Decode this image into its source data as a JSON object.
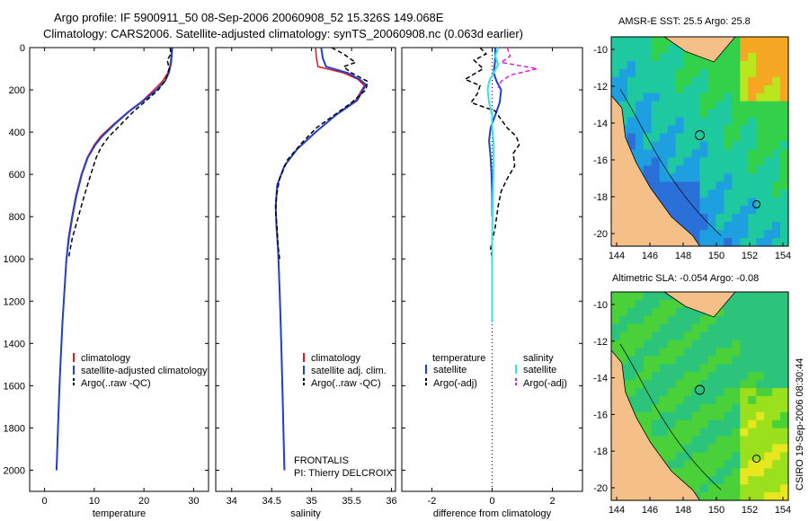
{
  "header": {
    "line1": "Argo profile: IF 5900911_50 08-Sep-2006 20060908_52 15.326S 149.068E",
    "line2": "Climatology: CARS2006. Satellite-adjusted climatology: synTS_20060908.nc (0.063d earlier)"
  },
  "colors": {
    "red": "#e31a1c",
    "blue": "#1f3fd6",
    "black": "#000000",
    "cyan": "#2ee6e6",
    "magenta": "#e01ee0",
    "land": "#f4c087"
  },
  "chart_data": [
    {
      "type": "line",
      "xlabel": "temperature",
      "xticks": [
        "0",
        "10",
        "20",
        "30"
      ],
      "xlim": [
        -3,
        33
      ],
      "ylim": [
        2100,
        0
      ],
      "yticks": [
        "0",
        "200",
        "400",
        "600",
        "800",
        "1000",
        "1200",
        "1400",
        "1600",
        "1800",
        "2000"
      ],
      "series": [
        {
          "name": "climatology",
          "color": "red",
          "dash": "",
          "width": 1.5,
          "points": [
            [
              25.6,
              0
            ],
            [
              25.5,
              40
            ],
            [
              25.3,
              80
            ],
            [
              24.8,
              120
            ],
            [
              23.7,
              160
            ],
            [
              22,
              200
            ],
            [
              19.8,
              250
            ],
            [
              17,
              300
            ],
            [
              14,
              360
            ],
            [
              11.3,
              420
            ],
            [
              10,
              460
            ],
            [
              8.6,
              520
            ],
            [
              7.4,
              600
            ],
            [
              6.3,
              700
            ],
            [
              5.5,
              800
            ],
            [
              4.8,
              900
            ],
            [
              4.4,
              1000
            ],
            [
              4.0,
              1150
            ],
            [
              3.6,
              1300
            ],
            [
              3.3,
              1450
            ],
            [
              3.0,
              1600
            ],
            [
              2.7,
              1800
            ],
            [
              2.4,
              2000
            ]
          ]
        },
        {
          "name": "satellite-adjusted climatology",
          "color": "blue",
          "dash": "",
          "width": 2,
          "points": [
            [
              25.7,
              0
            ],
            [
              25.6,
              40
            ],
            [
              25.4,
              80
            ],
            [
              25,
              120
            ],
            [
              24.2,
              160
            ],
            [
              22.5,
              200
            ],
            [
              20,
              250
            ],
            [
              17.1,
              300
            ],
            [
              14.2,
              360
            ],
            [
              11.6,
              420
            ],
            [
              10.2,
              460
            ],
            [
              8.7,
              520
            ],
            [
              7.5,
              600
            ],
            [
              6.4,
              700
            ],
            [
              5.6,
              800
            ],
            [
              4.9,
              900
            ],
            [
              4.4,
              1000
            ],
            [
              4.0,
              1150
            ],
            [
              3.6,
              1300
            ],
            [
              3.3,
              1450
            ],
            [
              3.0,
              1600
            ],
            [
              2.7,
              1800
            ],
            [
              2.4,
              2000
            ]
          ]
        },
        {
          "name": "Argo(..raw -QC)",
          "color": "black",
          "dash": "5,3",
          "width": 1.5,
          "points": [
            [
              25.3,
              0
            ],
            [
              25.4,
              30
            ],
            [
              24.7,
              60
            ],
            [
              25.1,
              100
            ],
            [
              24.4,
              150
            ],
            [
              22.9,
              200
            ],
            [
              20.5,
              250
            ],
            [
              18,
              300
            ],
            [
              15.5,
              360
            ],
            [
              13,
              420
            ],
            [
              11.4,
              470
            ],
            [
              10.4,
              520
            ],
            [
              9.3,
              600
            ],
            [
              8,
              700
            ],
            [
              6.8,
              800
            ],
            [
              5.6,
              900
            ],
            [
              4.8,
              1000
            ]
          ]
        }
      ],
      "legend": [
        "climatology",
        "satellite-adjusted climatology",
        "Argo(..raw -QC)"
      ]
    },
    {
      "type": "line",
      "xlabel": "salinity",
      "xticks": [
        "34",
        "34.5",
        "35",
        "35.5",
        "36"
      ],
      "xlim": [
        33.8,
        36.05
      ],
      "ylim": [
        2100,
        0
      ],
      "series": [
        {
          "name": "climatology",
          "color": "red",
          "dash": "",
          "width": 1.5,
          "points": [
            [
              35.05,
              0
            ],
            [
              35.06,
              50
            ],
            [
              35.08,
              90
            ],
            [
              35.4,
              120
            ],
            [
              35.58,
              150
            ],
            [
              35.66,
              180
            ],
            [
              35.55,
              250
            ],
            [
              35.3,
              320
            ],
            [
              35.05,
              400
            ],
            [
              34.82,
              480
            ],
            [
              34.66,
              560
            ],
            [
              34.57,
              650
            ],
            [
              34.55,
              750
            ],
            [
              34.56,
              850
            ],
            [
              34.58,
              950
            ],
            [
              34.6,
              1150
            ],
            [
              34.62,
              1400
            ],
            [
              34.64,
              1700
            ],
            [
              34.66,
              2000
            ]
          ]
        },
        {
          "name": "satellite adj. clim.",
          "color": "blue",
          "dash": "",
          "width": 2,
          "points": [
            [
              35.12,
              0
            ],
            [
              35.14,
              50
            ],
            [
              35.18,
              90
            ],
            [
              35.45,
              120
            ],
            [
              35.6,
              150
            ],
            [
              35.68,
              175
            ],
            [
              35.57,
              250
            ],
            [
              35.3,
              320
            ],
            [
              35.05,
              400
            ],
            [
              34.82,
              480
            ],
            [
              34.66,
              560
            ],
            [
              34.57,
              650
            ],
            [
              34.55,
              750
            ],
            [
              34.56,
              850
            ],
            [
              34.58,
              950
            ],
            [
              34.6,
              1150
            ],
            [
              34.62,
              1400
            ],
            [
              34.64,
              1700
            ],
            [
              34.66,
              2000
            ]
          ]
        },
        {
          "name": "Argo(..raw -QC)",
          "color": "black",
          "dash": "5,3",
          "width": 1.5,
          "points": [
            [
              35.25,
              0
            ],
            [
              35.4,
              30
            ],
            [
              35.55,
              70
            ],
            [
              35.4,
              90
            ],
            [
              35.5,
              120
            ],
            [
              35.7,
              160
            ],
            [
              35.68,
              200
            ],
            [
              35.5,
              260
            ],
            [
              35.28,
              320
            ],
            [
              35.06,
              380
            ],
            [
              34.88,
              450
            ],
            [
              34.7,
              530
            ],
            [
              34.6,
              620
            ],
            [
              34.56,
              700
            ],
            [
              34.55,
              780
            ],
            [
              34.57,
              860
            ],
            [
              34.58,
              940
            ],
            [
              34.6,
              1000
            ]
          ]
        }
      ],
      "legend": [
        "climatology",
        "satellite adj. clim.",
        "Argo(..raw -QC)"
      ],
      "annotation": [
        "FRONTALIS",
        "PI: Thierry DELCROIX"
      ]
    },
    {
      "type": "line",
      "xlabel": "difference from climatology",
      "xticks": [
        "-2",
        "0",
        "2"
      ],
      "xlim": [
        -3,
        3
      ],
      "ylim": [
        2100,
        0
      ],
      "series": [
        {
          "name": "temperature satellite",
          "color": "blue",
          "dash": "",
          "width": 2,
          "points": [
            [
              0.1,
              0
            ],
            [
              0.1,
              60
            ],
            [
              0.05,
              120
            ],
            [
              0.15,
              160
            ],
            [
              0.3,
              200
            ],
            [
              0.25,
              260
            ],
            [
              0.1,
              320
            ],
            [
              -0.05,
              380
            ],
            [
              -0.1,
              440
            ],
            [
              -0.05,
              520
            ],
            [
              -0.02,
              600
            ],
            [
              0,
              700
            ],
            [
              0,
              800
            ]
          ]
        },
        {
          "name": "temperature Argo(-adj)",
          "color": "black",
          "dash": "5,3",
          "width": 1.5,
          "points": [
            [
              -0.4,
              0
            ],
            [
              -0.2,
              30
            ],
            [
              -0.6,
              60
            ],
            [
              -0.3,
              100
            ],
            [
              -0.9,
              150
            ],
            [
              -0.4,
              180
            ],
            [
              -0.5,
              220
            ],
            [
              -0.7,
              260
            ],
            [
              0.1,
              300
            ],
            [
              0.3,
              340
            ],
            [
              0.5,
              380
            ],
            [
              0.8,
              420
            ],
            [
              0.9,
              460
            ],
            [
              0.7,
              500
            ],
            [
              0.75,
              560
            ],
            [
              0.5,
              620
            ],
            [
              0.3,
              680
            ],
            [
              0.2,
              750
            ],
            [
              0.1,
              850
            ],
            [
              -0.05,
              950
            ],
            [
              0,
              1000
            ]
          ]
        },
        {
          "name": "salinity satellite",
          "color": "cyan",
          "dash": "",
          "width": 2,
          "points": [
            [
              0.2,
              0
            ],
            [
              0.1,
              40
            ],
            [
              0.2,
              80
            ],
            [
              0.05,
              120
            ],
            [
              -0.1,
              160
            ],
            [
              -0.15,
              200
            ],
            [
              -0.1,
              260
            ],
            [
              0,
              320
            ],
            [
              0,
              380
            ],
            [
              0.05,
              450
            ],
            [
              0.05,
              550
            ],
            [
              0.02,
              700
            ],
            [
              0,
              900
            ],
            [
              0,
              1100
            ],
            [
              0,
              1300
            ]
          ]
        },
        {
          "name": "salinity Argo(-adj)",
          "color": "magenta",
          "dash": "5,3",
          "width": 1.5,
          "points": [
            [
              0.5,
              0
            ],
            [
              0.6,
              40
            ],
            [
              0.3,
              70
            ],
            [
              1.5,
              100
            ],
            [
              0.6,
              130
            ],
            [
              0.3,
              160
            ],
            [
              0.2,
              190
            ]
          ]
        }
      ],
      "legend_left_head": "temperature",
      "legend_right_head": "salinity",
      "legend_left": [
        "satellite",
        "Argo(-adj)"
      ],
      "legend_right": [
        "satellite",
        "Argo(-adj)"
      ]
    }
  ],
  "maps": [
    {
      "title": "AMSR-E SST: 25.5 Argo: 25.8",
      "xticks": [
        "144",
        "146",
        "148",
        "150",
        "152",
        "154"
      ],
      "yticks": [
        "-10",
        "-12",
        "-14",
        "-16",
        "-18",
        "-20"
      ]
    },
    {
      "title": "Altimetric SLA: -0.054 Argo: -0.08",
      "xticks": [
        "144",
        "146",
        "148",
        "150",
        "152",
        "154"
      ],
      "yticks": [
        "-10",
        "-12",
        "-14",
        "-16",
        "-18",
        "-20"
      ]
    }
  ],
  "stamp": "CSIRO 19-Sep-2006 08:30:44"
}
